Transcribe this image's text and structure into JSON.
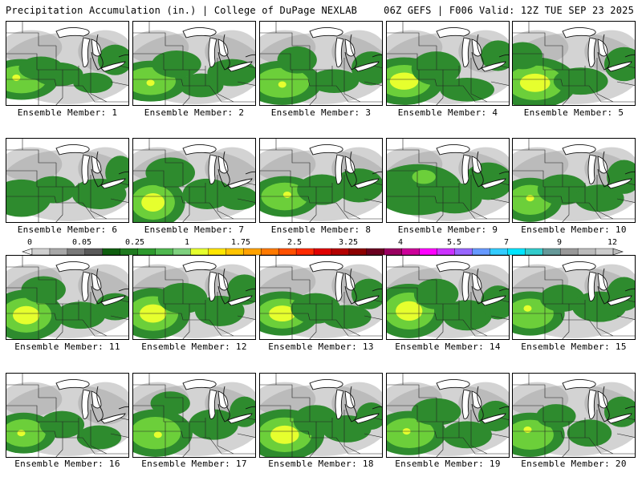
{
  "header": {
    "left": "Precipitation Accumulation (in.) | College of DuPage NEXLAB",
    "right": "06Z GEFS | F006 Valid: 12Z TUE SEP 23 2025"
  },
  "panels": [
    {
      "label": "Ensemble Member: 1",
      "blobs": [
        [
          0.12,
          0.68,
          0.3,
          0.24,
          2
        ],
        [
          0.28,
          0.55,
          0.18,
          0.14,
          1
        ],
        [
          0.42,
          0.62,
          0.2,
          0.14,
          1
        ],
        [
          0.7,
          0.72,
          0.16,
          0.12,
          1
        ],
        [
          0.88,
          0.45,
          0.14,
          0.18,
          1
        ]
      ],
      "max": [
        0.08,
        0.66
      ]
    },
    {
      "label": "Ensemble Member: 2",
      "blobs": [
        [
          0.14,
          0.7,
          0.3,
          0.24,
          2
        ],
        [
          0.35,
          0.5,
          0.2,
          0.16,
          1
        ],
        [
          0.55,
          0.75,
          0.18,
          0.14,
          1
        ],
        [
          0.8,
          0.6,
          0.2,
          0.16,
          1
        ]
      ],
      "max": [
        0.14,
        0.72
      ]
    },
    {
      "label": "Ensemble Member: 3",
      "blobs": [
        [
          0.18,
          0.72,
          0.32,
          0.26,
          2
        ],
        [
          0.3,
          0.45,
          0.16,
          0.16,
          1
        ],
        [
          0.6,
          0.7,
          0.2,
          0.14,
          1
        ],
        [
          0.9,
          0.55,
          0.16,
          0.2,
          1
        ]
      ],
      "max": [
        0.18,
        0.74
      ]
    },
    {
      "label": "Ensemble Member: 4",
      "blobs": [
        [
          0.14,
          0.7,
          0.32,
          0.28,
          3
        ],
        [
          0.4,
          0.55,
          0.2,
          0.2,
          1
        ],
        [
          0.65,
          0.8,
          0.22,
          0.14,
          1
        ],
        [
          0.9,
          0.4,
          0.14,
          0.18,
          1
        ]
      ],
      "max": [
        0.12,
        0.66
      ]
    },
    {
      "label": "Ensemble Member: 5",
      "blobs": [
        [
          0.18,
          0.72,
          0.34,
          0.3,
          3
        ],
        [
          0.08,
          0.4,
          0.16,
          0.16,
          1
        ],
        [
          0.55,
          0.7,
          0.22,
          0.16,
          1
        ],
        [
          0.9,
          0.5,
          0.16,
          0.2,
          1
        ]
      ],
      "max": [
        0.18,
        0.72
      ]
    },
    {
      "label": "Ensemble Member: 6",
      "blobs": [
        [
          0.12,
          0.7,
          0.24,
          0.22,
          1
        ],
        [
          0.38,
          0.6,
          0.18,
          0.16,
          1
        ],
        [
          0.75,
          0.65,
          0.22,
          0.18,
          1
        ],
        [
          0.92,
          0.4,
          0.12,
          0.2,
          1
        ]
      ],
      "max": null
    },
    {
      "label": "Ensemble Member: 7",
      "blobs": [
        [
          0.16,
          0.75,
          0.26,
          0.3,
          3
        ],
        [
          0.3,
          0.4,
          0.2,
          0.18,
          1
        ],
        [
          0.6,
          0.65,
          0.2,
          0.18,
          1
        ],
        [
          0.85,
          0.7,
          0.16,
          0.14,
          1
        ]
      ],
      "max": [
        0.14,
        0.7
      ]
    },
    {
      "label": "Ensemble Member: 8",
      "blobs": [
        [
          0.2,
          0.68,
          0.28,
          0.24,
          2
        ],
        [
          0.5,
          0.6,
          0.2,
          0.18,
          1
        ],
        [
          0.8,
          0.55,
          0.2,
          0.2,
          1
        ]
      ],
      "max": [
        0.22,
        0.66
      ]
    },
    {
      "label": "Ensemble Member: 9",
      "blobs": [
        [
          0.25,
          0.6,
          0.36,
          0.3,
          1
        ],
        [
          0.55,
          0.7,
          0.22,
          0.18,
          1
        ],
        [
          0.82,
          0.5,
          0.2,
          0.22,
          1
        ],
        [
          0.3,
          0.45,
          0.14,
          0.12,
          2
        ]
      ],
      "max": null
    },
    {
      "label": "Ensemble Member: 10",
      "blobs": [
        [
          0.14,
          0.72,
          0.26,
          0.26,
          2
        ],
        [
          0.4,
          0.6,
          0.2,
          0.18,
          1
        ],
        [
          0.7,
          0.7,
          0.2,
          0.16,
          1
        ],
        [
          0.9,
          0.45,
          0.14,
          0.2,
          1
        ]
      ],
      "max": [
        0.14,
        0.7
      ]
    },
    {
      "label": "Ensemble Member: 11",
      "blobs": [
        [
          0.16,
          0.7,
          0.3,
          0.3,
          3
        ],
        [
          0.3,
          0.4,
          0.18,
          0.16,
          1
        ],
        [
          0.6,
          0.7,
          0.2,
          0.16,
          1
        ],
        [
          0.88,
          0.6,
          0.16,
          0.16,
          1
        ]
      ],
      "max": [
        0.18,
        0.74
      ]
    },
    {
      "label": "Ensemble Member: 12",
      "blobs": [
        [
          0.16,
          0.68,
          0.3,
          0.3,
          3
        ],
        [
          0.4,
          0.5,
          0.2,
          0.18,
          1
        ],
        [
          0.7,
          0.65,
          0.2,
          0.18,
          1
        ],
        [
          0.9,
          0.4,
          0.14,
          0.18,
          1
        ]
      ],
      "max": [
        0.16,
        0.66
      ]
    },
    {
      "label": "Ensemble Member: 13",
      "blobs": [
        [
          0.18,
          0.68,
          0.3,
          0.26,
          3
        ],
        [
          0.45,
          0.62,
          0.2,
          0.18,
          1
        ],
        [
          0.7,
          0.72,
          0.2,
          0.14,
          1
        ],
        [
          0.88,
          0.45,
          0.14,
          0.18,
          1
        ]
      ],
      "max": [
        0.2,
        0.66
      ]
    },
    {
      "label": "Ensemble Member: 14",
      "blobs": [
        [
          0.18,
          0.65,
          0.3,
          0.32,
          3
        ],
        [
          0.4,
          0.45,
          0.18,
          0.18,
          1
        ],
        [
          0.65,
          0.7,
          0.2,
          0.18,
          1
        ],
        [
          0.9,
          0.55,
          0.14,
          0.2,
          1
        ]
      ],
      "max": [
        0.18,
        0.64
      ]
    },
    {
      "label": "Ensemble Member: 15",
      "blobs": [
        [
          0.14,
          0.68,
          0.28,
          0.26,
          2
        ],
        [
          0.4,
          0.5,
          0.18,
          0.16,
          1
        ],
        [
          0.7,
          0.6,
          0.22,
          0.18,
          1
        ],
        [
          0.9,
          0.45,
          0.14,
          0.2,
          1
        ]
      ],
      "max": [
        0.12,
        0.62
      ]
    },
    {
      "label": "Ensemble Member: 16",
      "blobs": [
        [
          0.14,
          0.7,
          0.26,
          0.24,
          2
        ],
        [
          0.45,
          0.6,
          0.18,
          0.16,
          1
        ],
        [
          0.75,
          0.75,
          0.18,
          0.14,
          1
        ]
      ],
      "max": [
        0.12,
        0.7
      ]
    },
    {
      "label": "Ensemble Member: 17",
      "blobs": [
        [
          0.18,
          0.7,
          0.3,
          0.28,
          2
        ],
        [
          0.3,
          0.35,
          0.16,
          0.14,
          1
        ],
        [
          0.65,
          0.6,
          0.2,
          0.18,
          1
        ],
        [
          0.9,
          0.45,
          0.12,
          0.18,
          1
        ]
      ],
      "max": [
        0.2,
        0.72
      ]
    },
    {
      "label": "Ensemble Member: 18",
      "blobs": [
        [
          0.2,
          0.72,
          0.32,
          0.3,
          3
        ],
        [
          0.45,
          0.55,
          0.18,
          0.18,
          1
        ],
        [
          0.7,
          0.65,
          0.2,
          0.16,
          1
        ],
        [
          0.9,
          0.5,
          0.12,
          0.16,
          1
        ]
      ],
      "max": [
        0.18,
        0.76
      ]
    },
    {
      "label": "Ensemble Member: 19",
      "blobs": [
        [
          0.18,
          0.7,
          0.3,
          0.26,
          2
        ],
        [
          0.4,
          0.45,
          0.2,
          0.16,
          1
        ],
        [
          0.65,
          0.72,
          0.2,
          0.16,
          1
        ],
        [
          0.88,
          0.5,
          0.14,
          0.18,
          1
        ]
      ],
      "max": [
        0.16,
        0.68
      ]
    },
    {
      "label": "Ensemble Member: 20",
      "blobs": [
        [
          0.14,
          0.72,
          0.28,
          0.26,
          2
        ],
        [
          0.35,
          0.5,
          0.16,
          0.14,
          1
        ],
        [
          0.62,
          0.7,
          0.18,
          0.16,
          1
        ],
        [
          0.88,
          0.45,
          0.14,
          0.18,
          1
        ]
      ],
      "max": [
        0.12,
        0.66
      ]
    }
  ],
  "colorbar": {
    "labels": [
      "0",
      "0.05",
      "0.25",
      "1",
      "1.75",
      "2.5",
      "3.25",
      "4",
      "5.5",
      "7",
      "9",
      "12"
    ],
    "colors": [
      "#d0d0d0",
      "#a8a8a8",
      "#7a7a7a",
      "#5a5a5a",
      "#0f5e0f",
      "#1f7a1f",
      "#2e9a2e",
      "#4fb84f",
      "#7fd17f",
      "#e6ff2e",
      "#ffe600",
      "#ffc400",
      "#ffa200",
      "#ff7a00",
      "#ff5000",
      "#ff2a00",
      "#e00000",
      "#b40000",
      "#8c0000",
      "#6a0020",
      "#990060",
      "#cc0099",
      "#ff00ff",
      "#cc33ff",
      "#9966ff",
      "#6699ff",
      "#33ccff",
      "#00e5ff",
      "#33cccc",
      "#669999",
      "#999999",
      "#bbbbbb",
      "#cccccc"
    ]
  },
  "intensity_colors": [
    "#9e9e9e",
    "#2e8b2e",
    "#6ccf3a",
    "#e6ff2e",
    "#ff2a00"
  ]
}
